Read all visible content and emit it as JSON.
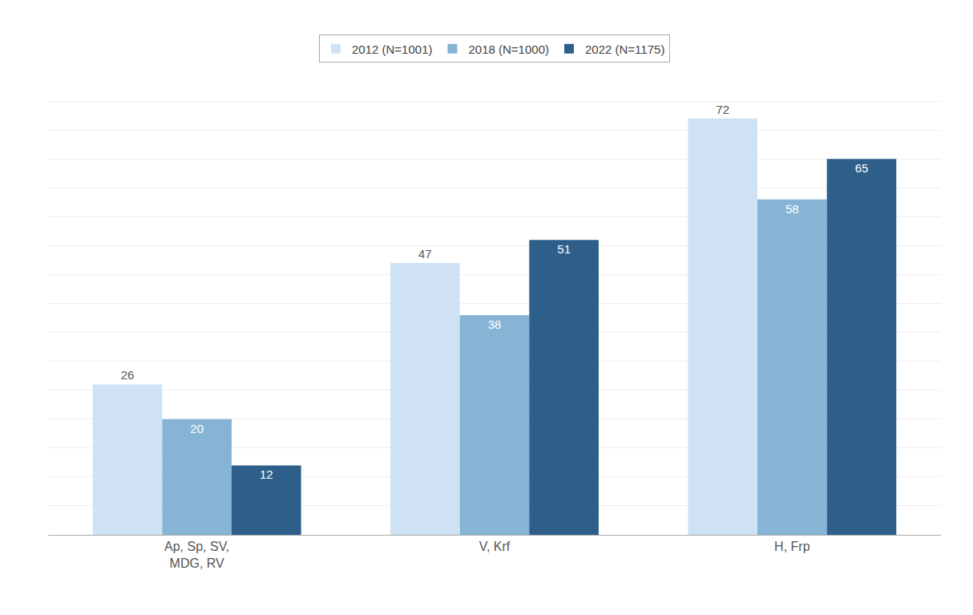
{
  "chart_data": {
    "type": "bar",
    "categories": [
      "Ap, Sp, SV,\nMDG, RV",
      "V, Krf",
      "H, Frp"
    ],
    "series": [
      {
        "name": "2012 (N=1001)",
        "color": "#cfe2f3",
        "values": [
          26,
          47,
          72
        ]
      },
      {
        "name": "2018 (N=1000)",
        "color": "#85b4d4",
        "values": [
          20,
          38,
          58
        ]
      },
      {
        "name": "2022 (N=1175)",
        "color": "#2e5f8a",
        "values": [
          12,
          51,
          65
        ]
      }
    ],
    "ylim": [
      0,
      80
    ],
    "yticks": [
      0,
      5,
      10,
      15,
      20,
      25,
      30,
      35,
      40,
      45,
      50,
      55,
      60,
      65,
      70,
      75,
      80
    ],
    "grid": true,
    "legend": "top",
    "data_labels": true,
    "tick_labels": "x"
  }
}
